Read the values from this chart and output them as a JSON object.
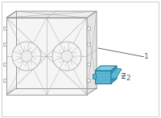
{
  "bg_color": "#ffffff",
  "line_color": "#aaaaaa",
  "line_color_dark": "#888888",
  "module_color_front": "#5bb8d4",
  "module_color_top": "#7acfe8",
  "module_color_side": "#3a9ab8",
  "module_edge": "#2a7a9a",
  "callout_color": "#555555",
  "label1": "1",
  "label2": "2",
  "label_fontsize": 6.5,
  "figsize": [
    2.0,
    1.47
  ],
  "dpi": 100
}
